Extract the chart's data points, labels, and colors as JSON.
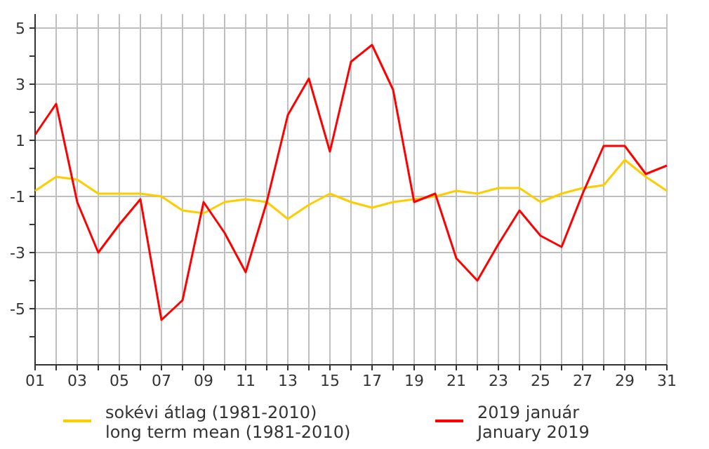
{
  "chart_data": {
    "type": "line",
    "x": [
      1,
      2,
      3,
      4,
      5,
      6,
      7,
      8,
      9,
      10,
      11,
      12,
      13,
      14,
      15,
      16,
      17,
      18,
      19,
      20,
      21,
      22,
      23,
      24,
      25,
      26,
      27,
      28,
      29,
      30,
      31
    ],
    "series": [
      {
        "name": "sokévi átlag (1981-2010)\nlong term mean (1981-2010)",
        "color": "#ffcc00",
        "values": [
          -0.8,
          -0.3,
          -0.4,
          -0.9,
          -0.9,
          -0.9,
          -1.0,
          -1.5,
          -1.6,
          -1.2,
          -1.1,
          -1.2,
          -1.8,
          -1.3,
          -0.9,
          -1.2,
          -1.4,
          -1.2,
          -1.1,
          -1.0,
          -0.8,
          -0.9,
          -0.7,
          -0.7,
          -1.2,
          -0.9,
          -0.7,
          -0.6,
          0.3,
          -0.3,
          -0.8
        ]
      },
      {
        "name": "2019 január\nJanuary 2019",
        "color": "#ff0000",
        "values": [
          1.2,
          2.3,
          -1.2,
          -3.0,
          -2.0,
          -1.1,
          -5.4,
          -4.7,
          -1.2,
          -2.3,
          -3.7,
          -1.2,
          1.9,
          3.2,
          0.6,
          3.8,
          4.4,
          2.8,
          -1.2,
          -0.9,
          -3.2,
          -4.0,
          -2.7,
          -1.5,
          -2.4,
          -2.8,
          -0.9,
          0.8,
          0.8,
          -0.2,
          0.1
        ]
      }
    ],
    "xlim": [
      1,
      31
    ],
    "xticks": [
      {
        "value": 1,
        "label": "01"
      },
      {
        "value": 2,
        "label": null
      },
      {
        "value": 3,
        "label": "03"
      },
      {
        "value": 4,
        "label": null
      },
      {
        "value": 5,
        "label": "05"
      },
      {
        "value": 6,
        "label": null
      },
      {
        "value": 7,
        "label": "07"
      },
      {
        "value": 8,
        "label": null
      },
      {
        "value": 9,
        "label": "09"
      },
      {
        "value": 10,
        "label": null
      },
      11,
      {
        "value": 12,
        "label": null
      },
      13,
      {
        "value": 14,
        "label": null
      },
      15,
      {
        "value": 16,
        "label": null
      },
      17,
      {
        "value": 18,
        "label": null
      },
      19,
      {
        "value": 20,
        "label": null
      },
      21,
      {
        "value": 22,
        "label": null
      },
      23,
      {
        "value": 24,
        "label": null
      },
      25,
      {
        "value": 26,
        "label": null
      },
      27,
      {
        "value": 28,
        "label": null
      },
      29,
      {
        "value": 30,
        "label": null
      },
      31
    ],
    "ylim": [
      -7,
      5.5
    ],
    "yticks": [
      {
        "value": -6,
        "label": null
      },
      -5,
      {
        "value": -4,
        "label": null
      },
      -3,
      {
        "value": -2,
        "label": null
      },
      -1,
      {
        "value": 0,
        "label": null
      },
      1,
      {
        "value": 2,
        "label": null
      },
      3,
      {
        "value": 4,
        "label": null
      },
      5
    ],
    "grid": true,
    "legend": "bottom",
    "marker": "none",
    "line_style": "solid"
  }
}
